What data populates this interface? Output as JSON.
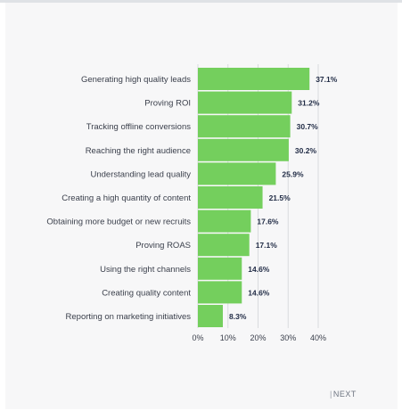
{
  "chart_data": {
    "type": "bar",
    "orientation": "horizontal",
    "categories": [
      "Generating high quality leads",
      "Proving ROI",
      "Tracking offline conversions",
      "Reaching the right audience",
      "Understanding lead quality",
      "Creating a high quantity of content",
      "Obtaining more budget or new recruits",
      "Proving ROAS",
      "Using the right channels",
      "Creating quality content",
      "Reporting on marketing initiatives"
    ],
    "values": [
      37.1,
      31.2,
      30.7,
      30.2,
      25.9,
      21.5,
      17.6,
      17.1,
      14.6,
      14.6,
      8.3
    ],
    "value_labels": [
      "37.1%",
      "31.2%",
      "30.7%",
      "30.2%",
      "25.9%",
      "21.5%",
      "17.6%",
      "17.1%",
      "14.6%",
      "14.6%",
      "8.3%"
    ],
    "xlim": [
      0,
      40
    ],
    "xticks": [
      0,
      10,
      20,
      30,
      40
    ],
    "xtick_labels": [
      "0%",
      "10%",
      "20%",
      "30%",
      "40%"
    ],
    "title": "",
    "xlabel": "",
    "ylabel": "",
    "grid": true,
    "bar_color": "#74cf5d",
    "grid_color": "#d9dbde"
  },
  "nav": {
    "next_separator": "|",
    "next_label": "NEXT"
  }
}
